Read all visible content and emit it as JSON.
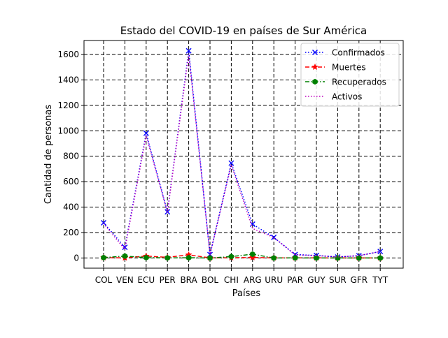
{
  "chart_data": {
    "type": "line",
    "title": "Estado del COVID-19 en países de Sur América",
    "xlabel": "Países",
    "ylabel": "Cantidad de personas",
    "categories": [
      "COL",
      "VEN",
      "ECU",
      "PER",
      "BRA",
      "BOL",
      "CHI",
      "ARG",
      "URU",
      "PAR",
      "GUY",
      "SUR",
      "GFR",
      "TYT"
    ],
    "ylim": [
      -80,
      1710
    ],
    "yticks": [
      0,
      200,
      400,
      600,
      800,
      1000,
      1200,
      1400,
      1600
    ],
    "grid": true,
    "legend_position": "top-right",
    "series": [
      {
        "name": "Confirmados",
        "color": "#0000ff",
        "linestyle": "dotted",
        "marker": "x",
        "values": [
          277,
          84,
          981,
          363,
          1629,
          27,
          746,
          266,
          162,
          27,
          20,
          8,
          18,
          51
        ]
      },
      {
        "name": "Muertes",
        "color": "#ff0000",
        "linestyle": "dashed",
        "marker": "star",
        "values": [
          3,
          1,
          15,
          5,
          25,
          1,
          2,
          4,
          1,
          1,
          1,
          0,
          0,
          0
        ]
      },
      {
        "name": "Recuperados",
        "color": "#008000",
        "linestyle": "dashdot",
        "marker": "hexagon",
        "values": [
          3,
          15,
          3,
          1,
          2,
          0,
          11,
          30,
          0,
          1,
          0,
          0,
          0,
          0
        ]
      },
      {
        "name": "Activos",
        "color": "#bf00bf",
        "linestyle": "dotted",
        "marker": "none",
        "values": [
          271,
          68,
          963,
          357,
          1602,
          26,
          733,
          232,
          161,
          25,
          19,
          8,
          18,
          51
        ]
      }
    ]
  }
}
